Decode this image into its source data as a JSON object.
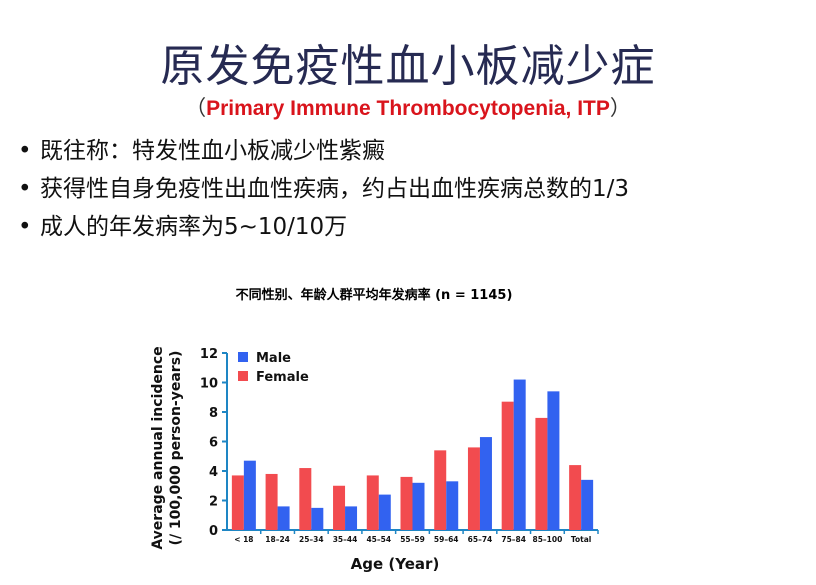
{
  "slide": {
    "title": "原发免疫性血小板减少症",
    "subtitle_open": "（",
    "subtitle_en": "Primary Immune Thrombocytopenia, ITP",
    "subtitle_close": "）",
    "bullets": [
      "既往称：特发性血小板减少性紫癜",
      "获得性自身免疫性出血性疾病，约占出血性疾病总数的1/3",
      "成人的年发病率为5~10/10万"
    ],
    "bullet_symbol": "•"
  },
  "chart_data": {
    "type": "bar",
    "title": "不同性别、年龄人群平均年发病率 (n = 1145)",
    "xlabel": "Age (Year)",
    "ylabel": [
      "Average annual incidence",
      "(/ 100,000 person-years)"
    ],
    "ylim": [
      0,
      12
    ],
    "yticks": [
      0,
      2,
      4,
      6,
      8,
      10,
      12
    ],
    "categories": [
      "< 18",
      "18–24",
      "25–34",
      "35–44",
      "45–54",
      "55–59",
      "59–64",
      "65–74",
      "75–84",
      "85–100",
      "Total"
    ],
    "series": [
      {
        "name": "Female",
        "color": "#f24b4f",
        "values": [
          3.7,
          3.8,
          4.2,
          3.0,
          3.7,
          3.6,
          5.4,
          5.6,
          8.7,
          7.6,
          4.4
        ]
      },
      {
        "name": "Male",
        "color": "#3262f0",
        "values": [
          4.7,
          1.6,
          1.5,
          1.6,
          2.4,
          3.2,
          3.3,
          6.3,
          10.2,
          9.4,
          3.4
        ]
      }
    ],
    "legend": [
      {
        "name": "Male",
        "color": "#3262f0"
      },
      {
        "name": "Female",
        "color": "#f24b4f"
      }
    ],
    "legend_position": "top-left",
    "axis_color": "#1e86c4"
  }
}
